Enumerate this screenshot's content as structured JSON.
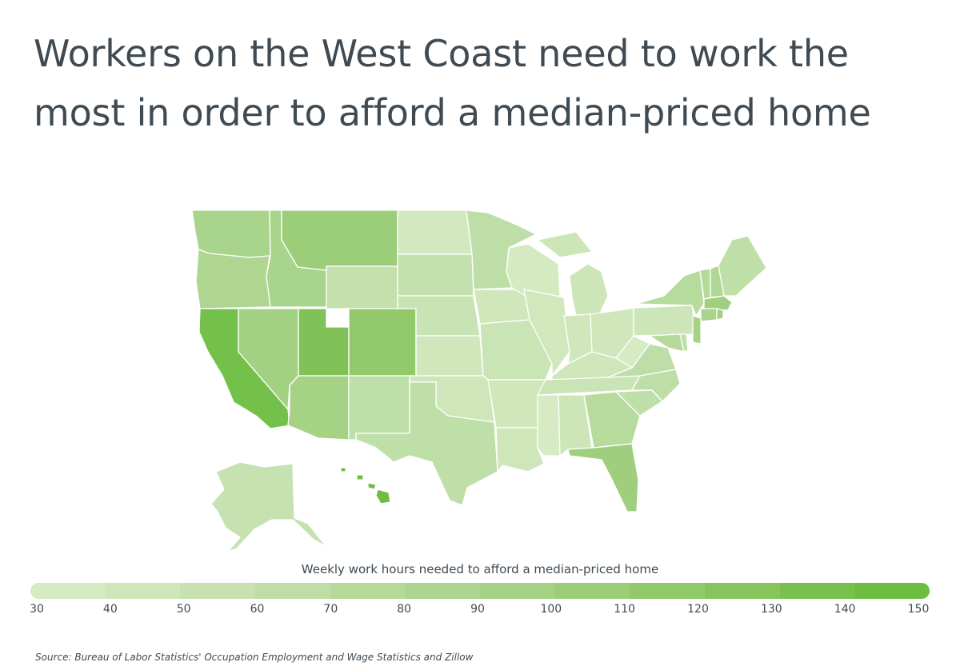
{
  "title": "Workers on the West Coast need to work the most in order to afford a median-priced home",
  "legend": {
    "title": "Weekly work hours needed to afford a median-priced home",
    "ticks": [
      "30",
      "40",
      "50",
      "60",
      "70",
      "80",
      "90",
      "100",
      "110",
      "120",
      "130",
      "140",
      "150"
    ],
    "colors": [
      "#d6eac3",
      "#cfe6ba",
      "#c7e2b0",
      "#bfdea5",
      "#b6d99a",
      "#add58f",
      "#a4d183",
      "#9bcd77",
      "#90c96a",
      "#85c55c",
      "#79c14e",
      "#6dbd41",
      "#62ba36"
    ]
  },
  "source": "Source: Bureau of Labor Statistics' Occupation Employment and Wage Statistics and Zillow",
  "colors": {
    "title": "#3f4a52",
    "border": "#ffffff"
  }
}
